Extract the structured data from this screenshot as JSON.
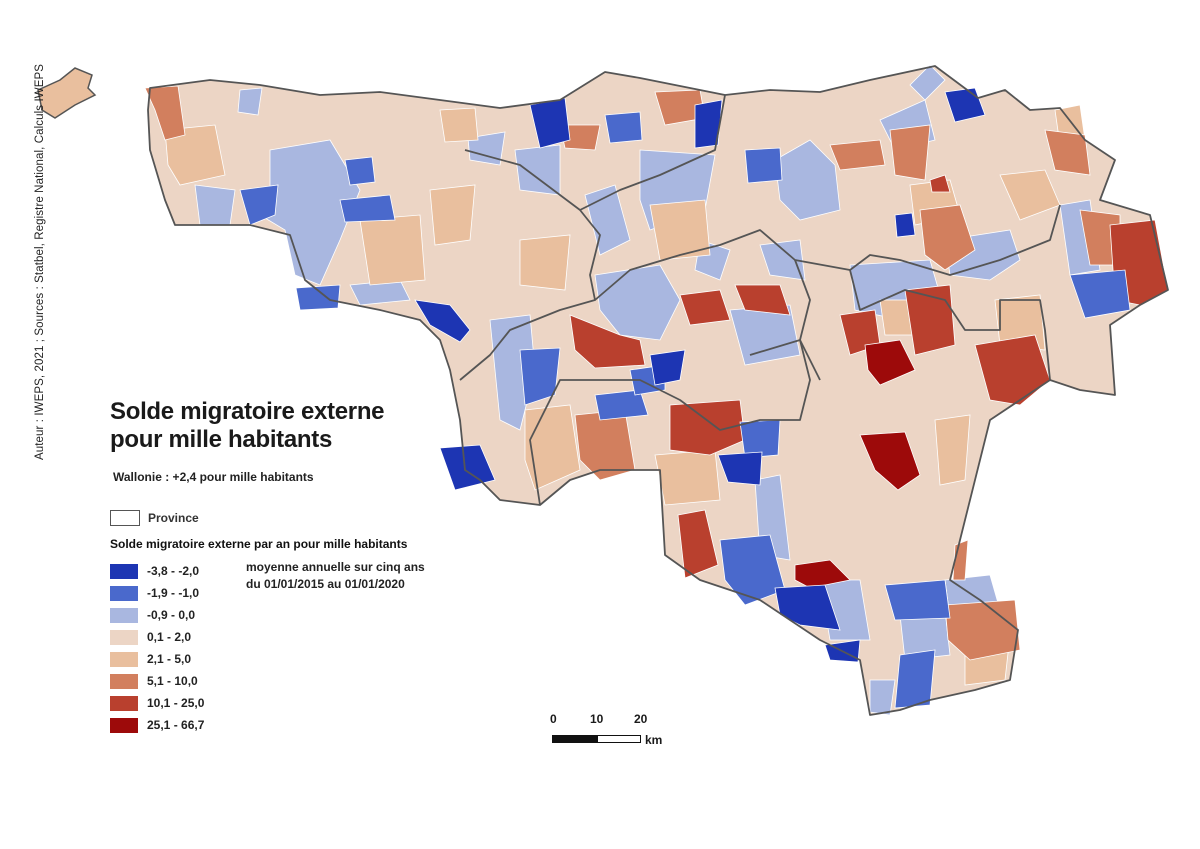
{
  "credit": "Auteur : IWEPS, 2021 ; Sources : Statbel, Registre National, Calculs IWEPS",
  "title": {
    "line1": "Solde migratoire externe",
    "line2": "pour mille habitants"
  },
  "subtitle": "Wallonie : +2,4 pour mille habitants",
  "province_legend": "Province",
  "legend": {
    "title": "Solde migratoire externe par an pour mille habitants",
    "note_line1": "moyenne annuelle sur cinq ans",
    "note_line2": "du 01/01/2015 au 01/01/2020",
    "classes": [
      {
        "label": "-3,8 - -2,0",
        "color": "#1d35b3"
      },
      {
        "label": "-1,9 - -1,0",
        "color": "#4a69cc"
      },
      {
        "label": "-0,9 - 0,0",
        "color": "#a9b7e0"
      },
      {
        "label": "0,1 - 2,0",
        "color": "#ecd5c5"
      },
      {
        "label": "2,1 - 5,0",
        "color": "#e9bf9e"
      },
      {
        "label": "5,1 - 10,0",
        "color": "#d27f5e"
      },
      {
        "label": "10,1 - 25,0",
        "color": "#b9402e"
      },
      {
        "label": "25,1 - 66,7",
        "color": "#9d0a0a"
      }
    ]
  },
  "scale": {
    "ticks": [
      "0",
      "10",
      "20"
    ],
    "unit": "km"
  }
}
